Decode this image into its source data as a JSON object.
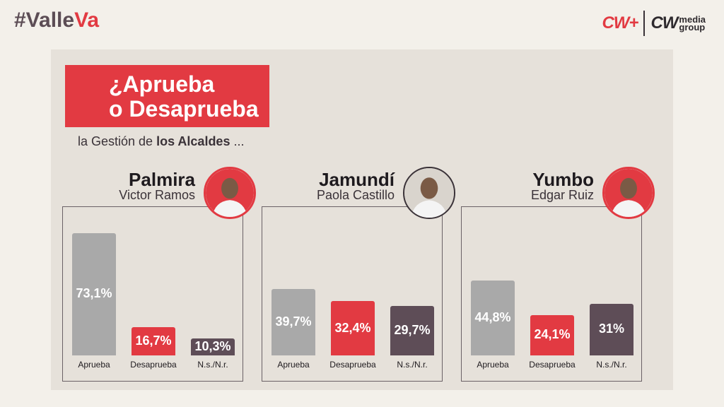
{
  "header": {
    "hashtag_part1": "#Valle",
    "hashtag_part2": "Va",
    "logo_cwplus": "CW+",
    "logo_cw": "CW",
    "logo_media": "media",
    "logo_group": "group"
  },
  "title": {
    "line1": "¿Aprueba",
    "line2": "o Desaprueba",
    "subtitle_pre": "la Gestión de ",
    "subtitle_bold": "los Alcaldes",
    "subtitle_post": " ..."
  },
  "colors": {
    "aprueba": "#a9a9a9",
    "desaprueba": "#e23a42",
    "ns_nr": "#5e4d57",
    "accent": "#e23a42"
  },
  "chart_data": [
    {
      "type": "bar",
      "title": "Palmira",
      "subtitle": "Victor Ramos",
      "avatar_icon": "mayor-photo-icon",
      "categories": [
        "Aprueba",
        "Desaprueba",
        "N.s./N.r."
      ],
      "values": [
        73.1,
        16.7,
        10.3
      ],
      "value_labels": [
        "73,1%",
        "16,7%",
        "10,3%"
      ]
    },
    {
      "type": "bar",
      "title": "Jamundí",
      "subtitle": "Paola Castillo",
      "avatar_icon": "mayor-photo-icon",
      "categories": [
        "Aprueba",
        "Desaprueba",
        "N.s./N.r."
      ],
      "values": [
        39.7,
        32.4,
        29.7
      ],
      "value_labels": [
        "39,7%",
        "32,4%",
        "29,7%"
      ]
    },
    {
      "type": "bar",
      "title": "Yumbo",
      "subtitle": "Edgar Ruiz",
      "avatar_icon": "mayor-photo-icon",
      "categories": [
        "Aprueba",
        "Desaprueba",
        "N.s./N.r."
      ],
      "values": [
        44.8,
        24.1,
        31
      ],
      "value_labels": [
        "44,8%",
        "24,1%",
        "31%"
      ]
    }
  ]
}
